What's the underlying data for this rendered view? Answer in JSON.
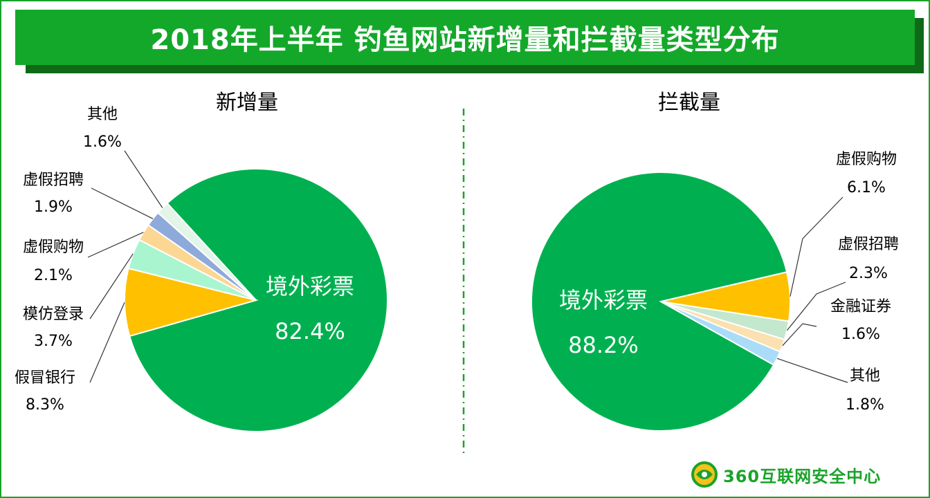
{
  "title": "2018年上半年 钓鱼网站新增量和拦截量类型分布",
  "colors": {
    "brand_green": "#14a82a",
    "lottery": "#00b050",
    "bank": "#ffc000",
    "imitate": "#a9f5d0",
    "shopping": "#fcd693",
    "recruit": "#8eaadb",
    "other": "#e2f5e8",
    "right_recruit": "#c3e8cd",
    "right_finance": "#fbe0b0",
    "right_other": "#aadcf8"
  },
  "logo": {
    "text": "360互联网安全中心",
    "icon": "360-shield-icon"
  },
  "chart_data": [
    {
      "type": "pie",
      "title": "新增量",
      "slices": [
        {
          "label": "境外彩票",
          "value": 82.4,
          "display": "82.4%",
          "color": "#00b050"
        },
        {
          "label": "假冒银行",
          "value": 8.3,
          "display": "8.3%",
          "color": "#ffc000"
        },
        {
          "label": "模仿登录",
          "value": 3.7,
          "display": "3.7%",
          "color": "#a9f5d0"
        },
        {
          "label": "虚假购物",
          "value": 2.1,
          "display": "2.1%",
          "color": "#fcd693"
        },
        {
          "label": "虚假招聘",
          "value": 1.9,
          "display": "1.9%",
          "color": "#8eaadb"
        },
        {
          "label": "其他",
          "value": 1.6,
          "display": "1.6%",
          "color": "#e2f5e8"
        }
      ]
    },
    {
      "type": "pie",
      "title": "拦截量",
      "slices": [
        {
          "label": "境外彩票",
          "value": 88.2,
          "display": "88.2%",
          "color": "#00b050"
        },
        {
          "label": "虚假购物",
          "value": 6.1,
          "display": "6.1%",
          "color": "#ffc000"
        },
        {
          "label": "虚假招聘",
          "value": 2.3,
          "display": "2.3%",
          "color": "#c3e8cd"
        },
        {
          "label": "金融证券",
          "value": 1.6,
          "display": "1.6%",
          "color": "#fbe0b0"
        },
        {
          "label": "其他",
          "value": 1.8,
          "display": "1.8%",
          "color": "#aadcf8"
        }
      ]
    }
  ]
}
